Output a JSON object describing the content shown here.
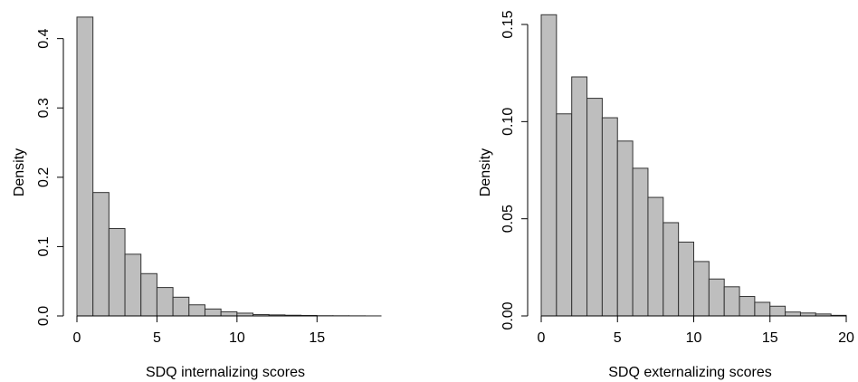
{
  "chart_data": [
    {
      "type": "bar",
      "subtype": "histogram",
      "title": "",
      "xlabel": "SDQ internalizing scores",
      "ylabel": "Density",
      "bin_width": 1,
      "bins_start": [
        0,
        1,
        2,
        3,
        4,
        5,
        6,
        7,
        8,
        9,
        10,
        11,
        12,
        13,
        14,
        15,
        16,
        17,
        18
      ],
      "values": [
        0.431,
        0.178,
        0.126,
        0.089,
        0.061,
        0.041,
        0.027,
        0.016,
        0.01,
        0.006,
        0.004,
        0.002,
        0.0015,
        0.001,
        0.0007,
        0.0004,
        0.0003,
        0.0002,
        0.0001
      ],
      "xlim": [
        0,
        19
      ],
      "ylim": [
        0,
        0.44
      ],
      "xticks": [
        0,
        5,
        10,
        15
      ],
      "xtick_labels": [
        "0",
        "5",
        "10",
        "15"
      ],
      "yticks": [
        0,
        0.1,
        0.2,
        0.3,
        0.4
      ],
      "ytick_labels": [
        "0.0",
        "0.1",
        "0.2",
        "0.3",
        "0.4"
      ],
      "grid": false,
      "bar_color": "#bebebe",
      "edge_color": "#333333"
    },
    {
      "type": "bar",
      "subtype": "histogram",
      "title": "",
      "xlabel": "SDQ externalizing scores",
      "ylabel": "Density",
      "bin_width": 1,
      "bins_start": [
        0,
        1,
        2,
        3,
        4,
        5,
        6,
        7,
        8,
        9,
        10,
        11,
        12,
        13,
        14,
        15,
        16,
        17,
        18,
        19
      ],
      "values": [
        0.155,
        0.104,
        0.123,
        0.112,
        0.102,
        0.09,
        0.076,
        0.061,
        0.048,
        0.038,
        0.028,
        0.019,
        0.015,
        0.01,
        0.007,
        0.005,
        0.002,
        0.0015,
        0.001,
        0.0003
      ],
      "xlim": [
        0,
        20
      ],
      "ylim": [
        0,
        0.157
      ],
      "xticks": [
        0,
        5,
        10,
        15,
        20
      ],
      "xtick_labels": [
        "0",
        "5",
        "10",
        "15",
        "20"
      ],
      "yticks": [
        0,
        0.05,
        0.1,
        0.15
      ],
      "ytick_labels": [
        "0.00",
        "0.05",
        "0.10",
        "0.15"
      ],
      "grid": false,
      "bar_color": "#bebebe",
      "edge_color": "#333333"
    }
  ]
}
